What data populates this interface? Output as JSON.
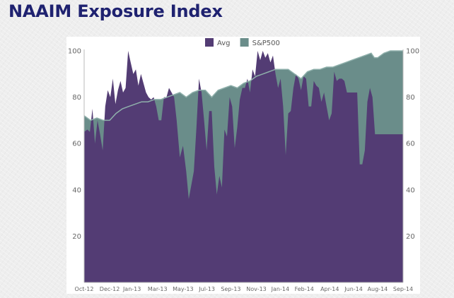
{
  "header": {
    "title": "NAAIM Exposure Index"
  },
  "colors": {
    "avg": "#533c74",
    "sp500": "#6a8d8a",
    "sp500_line": "#8fb0ab",
    "title": "#1f2270"
  },
  "chart_data": {
    "type": "area",
    "title": "NAAIM Exposure Index",
    "legend": [
      "Avg",
      "S&P500"
    ],
    "legend_position": "top-center",
    "ylim": [
      0,
      100
    ],
    "yticks": [
      20,
      40,
      60,
      80,
      100
    ],
    "y_right_ticks": [
      20,
      40,
      60,
      80,
      100
    ],
    "grid": false,
    "x_range": [
      0,
      100
    ],
    "xticks": [
      {
        "label": "Oct-12",
        "x": 0
      },
      {
        "label": "Dec-12",
        "x": 8
      },
      {
        "label": "Jan-13",
        "x": 15
      },
      {
        "label": "Mar-13",
        "x": 23
      },
      {
        "label": "May-13",
        "x": 31
      },
      {
        "label": "Jul-13",
        "x": 38.5
      },
      {
        "label": "Sep-13",
        "x": 46
      },
      {
        "label": "Nov-13",
        "x": 54
      },
      {
        "label": "Jan-14",
        "x": 61.5
      },
      {
        "label": "Feb-14",
        "x": 69
      },
      {
        "label": "Apr-14",
        "x": 77
      },
      {
        "label": "Jun-14",
        "x": 84.5
      },
      {
        "label": "Aug-14",
        "x": 92
      },
      {
        "label": "Sep-14",
        "x": 100
      }
    ],
    "series": [
      {
        "name": "Avg",
        "points": [
          [
            0,
            65
          ],
          [
            1,
            66
          ],
          [
            1.8,
            65
          ],
          [
            2.6,
            75
          ],
          [
            3.4,
            60
          ],
          [
            4.2,
            70
          ],
          [
            5,
            64
          ],
          [
            5.8,
            57
          ],
          [
            6.6,
            76
          ],
          [
            7.4,
            83
          ],
          [
            8.2,
            80
          ],
          [
            9,
            88
          ],
          [
            9.8,
            77
          ],
          [
            10.6,
            83
          ],
          [
            11.4,
            87
          ],
          [
            12.2,
            82
          ],
          [
            13,
            84
          ],
          [
            13.8,
            100
          ],
          [
            14.6,
            95
          ],
          [
            15.4,
            90
          ],
          [
            16.2,
            92
          ],
          [
            17,
            85
          ],
          [
            17.8,
            90
          ],
          [
            18.6,
            86
          ],
          [
            19.4,
            82
          ],
          [
            20.2,
            80
          ],
          [
            21,
            79
          ],
          [
            21.8,
            80
          ],
          [
            22.6,
            76
          ],
          [
            23.4,
            70
          ],
          [
            24.2,
            70
          ],
          [
            25,
            80
          ],
          [
            25.8,
            80
          ],
          [
            26.6,
            84
          ],
          [
            27.4,
            82
          ],
          [
            28.2,
            80
          ],
          [
            29,
            70
          ],
          [
            30,
            54
          ],
          [
            31,
            59
          ],
          [
            32,
            48
          ],
          [
            32.8,
            36
          ],
          [
            33.6,
            42
          ],
          [
            34.4,
            48
          ],
          [
            35.2,
            67
          ],
          [
            36,
            88
          ],
          [
            36.8,
            82
          ],
          [
            37.6,
            70
          ],
          [
            38.4,
            57
          ],
          [
            39.2,
            74
          ],
          [
            40,
            74
          ],
          [
            40.8,
            50
          ],
          [
            41.6,
            38
          ],
          [
            42.4,
            46
          ],
          [
            43.2,
            41
          ],
          [
            44,
            66
          ],
          [
            44.8,
            63
          ],
          [
            45.6,
            80
          ],
          [
            46.4,
            76
          ],
          [
            47.2,
            58
          ],
          [
            48,
            67
          ],
          [
            48.8,
            79
          ],
          [
            49.6,
            84
          ],
          [
            50.4,
            84
          ],
          [
            51.2,
            88
          ],
          [
            52,
            82
          ],
          [
            52.8,
            92
          ],
          [
            53.6,
            89
          ],
          [
            54.4,
            100
          ],
          [
            55.2,
            96
          ],
          [
            56,
            100
          ],
          [
            56.8,
            97
          ],
          [
            57.6,
            99
          ],
          [
            58.4,
            95
          ],
          [
            59.2,
            98
          ],
          [
            60,
            90
          ],
          [
            60.8,
            84
          ],
          [
            61.6,
            88
          ],
          [
            62.4,
            76
          ],
          [
            63.2,
            55
          ],
          [
            64,
            73
          ],
          [
            64.8,
            74
          ],
          [
            65.6,
            84
          ],
          [
            66.4,
            90
          ],
          [
            67.2,
            88
          ],
          [
            68,
            83
          ],
          [
            68.8,
            89
          ],
          [
            69.6,
            88
          ],
          [
            70.4,
            76
          ],
          [
            71.2,
            76
          ],
          [
            72,
            87
          ],
          [
            72.8,
            85
          ],
          [
            73.6,
            84
          ],
          [
            74.4,
            78
          ],
          [
            75.2,
            82
          ],
          [
            76,
            76
          ],
          [
            76.8,
            70
          ],
          [
            77.6,
            73
          ],
          [
            78.4,
            91
          ],
          [
            79.2,
            87
          ],
          [
            80,
            88
          ],
          [
            80.8,
            88
          ],
          [
            81.6,
            87
          ],
          [
            82.4,
            82
          ],
          [
            83.2,
            82
          ],
          [
            84,
            82
          ],
          [
            84.8,
            82
          ],
          [
            85.6,
            82
          ],
          [
            86.4,
            51
          ],
          [
            87.2,
            51
          ],
          [
            88,
            57
          ],
          [
            88.8,
            78
          ],
          [
            89.6,
            84
          ],
          [
            90.4,
            80
          ],
          [
            91.2,
            64
          ],
          [
            92,
            64
          ],
          [
            92.6,
            64
          ],
          [
            93.2,
            64
          ],
          [
            94,
            64
          ],
          [
            94.8,
            64
          ],
          [
            95.6,
            64
          ],
          [
            96.4,
            64
          ],
          [
            97.2,
            64
          ],
          [
            98,
            64
          ],
          [
            98.8,
            64
          ],
          [
            99.4,
            64
          ],
          [
            100,
            64
          ]
        ]
      },
      {
        "name": "S&P500",
        "points": [
          [
            0,
            72
          ],
          [
            2,
            70
          ],
          [
            4,
            71
          ],
          [
            6,
            70
          ],
          [
            8,
            70
          ],
          [
            10,
            73
          ],
          [
            12,
            75
          ],
          [
            14,
            76
          ],
          [
            16,
            77
          ],
          [
            18,
            78
          ],
          [
            20,
            78
          ],
          [
            22,
            79
          ],
          [
            24,
            79
          ],
          [
            26,
            80
          ],
          [
            28,
            81
          ],
          [
            30,
            82
          ],
          [
            32,
            80
          ],
          [
            34,
            82
          ],
          [
            36,
            83
          ],
          [
            38,
            83
          ],
          [
            40,
            80
          ],
          [
            42,
            83
          ],
          [
            44,
            84
          ],
          [
            46,
            85
          ],
          [
            48,
            84
          ],
          [
            50,
            86
          ],
          [
            52,
            87
          ],
          [
            54,
            89
          ],
          [
            56,
            90
          ],
          [
            58,
            91
          ],
          [
            60,
            92
          ],
          [
            62,
            92
          ],
          [
            64,
            92
          ],
          [
            66,
            90
          ],
          [
            68,
            88
          ],
          [
            70,
            91
          ],
          [
            72,
            92
          ],
          [
            74,
            92
          ],
          [
            76,
            93
          ],
          [
            78,
            93
          ],
          [
            80,
            94
          ],
          [
            82,
            95
          ],
          [
            84,
            96
          ],
          [
            86,
            97
          ],
          [
            88,
            98
          ],
          [
            90,
            99
          ],
          [
            91,
            97
          ],
          [
            92,
            97
          ],
          [
            94,
            99
          ],
          [
            96,
            100
          ],
          [
            98,
            100
          ],
          [
            100,
            100
          ]
        ]
      }
    ]
  }
}
